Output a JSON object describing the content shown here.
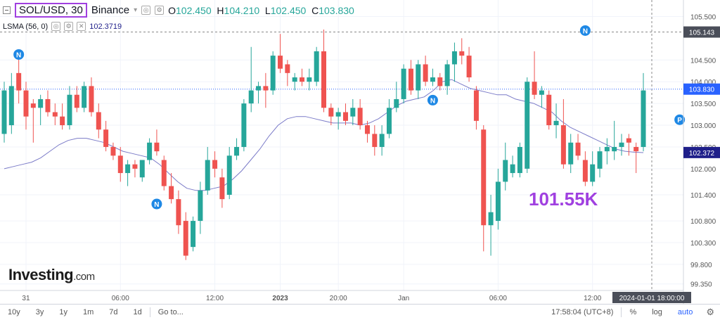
{
  "legend": {
    "symbol": "SOL/USD, 30",
    "exchange": "Binance",
    "open_label": "O",
    "open": "102.450",
    "high_label": "H",
    "high": "104.210",
    "low_label": "L",
    "low": "102.450",
    "close_label": "C",
    "close": "103.830"
  },
  "indicator": {
    "name": "LSMA (56, 0)",
    "value": "102.3719",
    "color": "#7b7bc8"
  },
  "annotation": "101.55K",
  "logo": {
    "main": "Investing",
    "suffix": ".com"
  },
  "bottom_bar": {
    "ranges": [
      "10y",
      "3y",
      "1y",
      "1m",
      "7d",
      "1d"
    ],
    "goto": "Go to...",
    "time": "17:58:04 (UTC+8)",
    "pct": "%",
    "log": "log",
    "auto": "auto"
  },
  "colors": {
    "up": "#26a69a",
    "down": "#ef5350",
    "price_line": "#2962ff",
    "annotation": "#a040e0"
  },
  "chart_data": {
    "type": "candlestick",
    "ylim": [
      99.2,
      105.75
    ],
    "y_ticks": [
      "105.500",
      "104.500",
      "104.000",
      "103.500",
      "103.000",
      "102.500",
      "102.000",
      "101.400",
      "100.800",
      "100.300",
      "99.800",
      "99.350"
    ],
    "x_ticks": [
      "31",
      "06:00",
      "12:00",
      "2023",
      "20:00",
      "Jan",
      "06:00",
      "12:00"
    ],
    "crosshair_time": "2024-01-01 18:00:00",
    "crosshair_price": "105.143",
    "last_price": "103.830",
    "lsma_last": "102.372",
    "candles": [
      {
        "o": 102.8,
        "h": 104.0,
        "l": 102.6,
        "c": 103.8
      },
      {
        "o": 103.0,
        "h": 104.2,
        "l": 102.8,
        "c": 103.9
      },
      {
        "o": 104.2,
        "h": 104.7,
        "l": 103.5,
        "c": 103.8
      },
      {
        "o": 103.8,
        "h": 104.0,
        "l": 102.9,
        "c": 103.2
      },
      {
        "o": 103.5,
        "h": 103.6,
        "l": 102.6,
        "c": 103.4
      },
      {
        "o": 103.4,
        "h": 103.7,
        "l": 103.0,
        "c": 103.6
      },
      {
        "o": 103.6,
        "h": 103.8,
        "l": 103.2,
        "c": 103.3
      },
      {
        "o": 103.3,
        "h": 103.5,
        "l": 103.0,
        "c": 103.2
      },
      {
        "o": 103.2,
        "h": 103.5,
        "l": 102.9,
        "c": 103.0
      },
      {
        "o": 103.0,
        "h": 103.9,
        "l": 102.9,
        "c": 103.7
      },
      {
        "o": 103.7,
        "h": 103.9,
        "l": 103.3,
        "c": 103.4
      },
      {
        "o": 103.4,
        "h": 104.0,
        "l": 103.3,
        "c": 103.9
      },
      {
        "o": 103.9,
        "h": 104.1,
        "l": 103.2,
        "c": 103.3
      },
      {
        "o": 103.3,
        "h": 103.5,
        "l": 102.7,
        "c": 102.9
      },
      {
        "o": 102.9,
        "h": 103.1,
        "l": 102.4,
        "c": 102.5
      },
      {
        "o": 102.5,
        "h": 102.6,
        "l": 102.2,
        "c": 102.3
      },
      {
        "o": 102.3,
        "h": 102.5,
        "l": 101.7,
        "c": 101.9
      },
      {
        "o": 101.9,
        "h": 102.2,
        "l": 101.6,
        "c": 102.1
      },
      {
        "o": 102.1,
        "h": 102.2,
        "l": 101.8,
        "c": 102.0
      },
      {
        "o": 101.8,
        "h": 102.2,
        "l": 101.7,
        "c": 102.2
      },
      {
        "o": 102.2,
        "h": 102.7,
        "l": 102.1,
        "c": 102.6
      },
      {
        "o": 102.6,
        "h": 102.9,
        "l": 102.3,
        "c": 102.4
      },
      {
        "o": 102.2,
        "h": 102.3,
        "l": 101.5,
        "c": 101.6
      },
      {
        "o": 101.6,
        "h": 101.9,
        "l": 101.2,
        "c": 101.3
      },
      {
        "o": 101.3,
        "h": 101.5,
        "l": 100.5,
        "c": 100.7
      },
      {
        "o": 100.8,
        "h": 101.0,
        "l": 99.9,
        "c": 100.0
      },
      {
        "o": 100.2,
        "h": 100.9,
        "l": 100.1,
        "c": 100.8
      },
      {
        "o": 100.8,
        "h": 101.7,
        "l": 100.5,
        "c": 101.5
      },
      {
        "o": 101.5,
        "h": 102.5,
        "l": 101.4,
        "c": 102.2
      },
      {
        "o": 102.2,
        "h": 102.4,
        "l": 101.8,
        "c": 102.0
      },
      {
        "o": 101.8,
        "h": 102.0,
        "l": 101.1,
        "c": 101.3
      },
      {
        "o": 101.4,
        "h": 102.5,
        "l": 101.3,
        "c": 102.3
      },
      {
        "o": 102.3,
        "h": 102.7,
        "l": 102.2,
        "c": 102.5
      },
      {
        "o": 102.5,
        "h": 103.6,
        "l": 102.4,
        "c": 103.5
      },
      {
        "o": 103.5,
        "h": 104.8,
        "l": 103.3,
        "c": 103.8
      },
      {
        "o": 103.8,
        "h": 104.0,
        "l": 103.5,
        "c": 103.9
      },
      {
        "o": 103.9,
        "h": 104.2,
        "l": 103.4,
        "c": 103.8
      },
      {
        "o": 103.8,
        "h": 104.7,
        "l": 103.7,
        "c": 104.6
      },
      {
        "o": 104.6,
        "h": 105.1,
        "l": 104.2,
        "c": 104.3
      },
      {
        "o": 104.4,
        "h": 104.5,
        "l": 103.9,
        "c": 104.2
      },
      {
        "o": 104.0,
        "h": 104.2,
        "l": 103.8,
        "c": 104.1
      },
      {
        "o": 104.1,
        "h": 104.3,
        "l": 103.9,
        "c": 104.0
      },
      {
        "o": 104.0,
        "h": 104.3,
        "l": 103.8,
        "c": 104.1
      },
      {
        "o": 104.0,
        "h": 104.8,
        "l": 103.9,
        "c": 104.7
      },
      {
        "o": 104.7,
        "h": 105.2,
        "l": 103.3,
        "c": 103.4
      },
      {
        "o": 103.4,
        "h": 103.5,
        "l": 103.0,
        "c": 103.2
      },
      {
        "o": 103.2,
        "h": 103.4,
        "l": 102.9,
        "c": 103.3
      },
      {
        "o": 103.3,
        "h": 103.5,
        "l": 103.0,
        "c": 103.1
      },
      {
        "o": 103.2,
        "h": 103.6,
        "l": 103.0,
        "c": 103.4
      },
      {
        "o": 103.4,
        "h": 103.6,
        "l": 102.9,
        "c": 103.0
      },
      {
        "o": 103.0,
        "h": 103.1,
        "l": 102.6,
        "c": 102.8
      },
      {
        "o": 102.8,
        "h": 103.0,
        "l": 102.3,
        "c": 102.5
      },
      {
        "o": 102.5,
        "h": 103.0,
        "l": 102.3,
        "c": 102.8
      },
      {
        "o": 102.8,
        "h": 103.6,
        "l": 102.7,
        "c": 103.4
      },
      {
        "o": 103.4,
        "h": 104.0,
        "l": 103.3,
        "c": 103.6
      },
      {
        "o": 103.6,
        "h": 104.4,
        "l": 103.5,
        "c": 104.3
      },
      {
        "o": 104.3,
        "h": 104.5,
        "l": 103.7,
        "c": 103.8
      },
      {
        "o": 103.8,
        "h": 104.5,
        "l": 103.6,
        "c": 104.4
      },
      {
        "o": 104.4,
        "h": 104.6,
        "l": 103.9,
        "c": 104.0
      },
      {
        "o": 104.0,
        "h": 104.3,
        "l": 103.9,
        "c": 104.1
      },
      {
        "o": 104.1,
        "h": 104.2,
        "l": 103.8,
        "c": 103.9
      },
      {
        "o": 103.9,
        "h": 104.5,
        "l": 103.7,
        "c": 104.4
      },
      {
        "o": 104.4,
        "h": 104.9,
        "l": 104.0,
        "c": 104.7
      },
      {
        "o": 104.7,
        "h": 105.0,
        "l": 104.4,
        "c": 104.6
      },
      {
        "o": 104.6,
        "h": 104.8,
        "l": 104.0,
        "c": 104.1
      },
      {
        "o": 103.8,
        "h": 103.9,
        "l": 102.9,
        "c": 103.1
      },
      {
        "o": 102.9,
        "h": 103.0,
        "l": 100.1,
        "c": 100.7
      },
      {
        "o": 100.7,
        "h": 101.4,
        "l": 100.0,
        "c": 101.0
      },
      {
        "o": 100.8,
        "h": 102.0,
        "l": 100.6,
        "c": 101.7
      },
      {
        "o": 101.7,
        "h": 102.6,
        "l": 101.5,
        "c": 102.2
      },
      {
        "o": 101.9,
        "h": 102.3,
        "l": 101.8,
        "c": 102.1
      },
      {
        "o": 101.9,
        "h": 102.6,
        "l": 101.8,
        "c": 102.5
      },
      {
        "o": 102.0,
        "h": 104.1,
        "l": 101.9,
        "c": 104.0
      },
      {
        "o": 104.0,
        "h": 104.7,
        "l": 103.6,
        "c": 103.7
      },
      {
        "o": 103.7,
        "h": 103.9,
        "l": 103.4,
        "c": 103.8
      },
      {
        "o": 103.7,
        "h": 103.8,
        "l": 102.9,
        "c": 103.0
      },
      {
        "o": 103.0,
        "h": 103.5,
        "l": 102.7,
        "c": 103.1
      },
      {
        "o": 103.0,
        "h": 103.6,
        "l": 102.0,
        "c": 102.1
      },
      {
        "o": 102.1,
        "h": 102.8,
        "l": 101.9,
        "c": 102.6
      },
      {
        "o": 102.6,
        "h": 102.8,
        "l": 102.2,
        "c": 102.3
      },
      {
        "o": 102.2,
        "h": 102.4,
        "l": 101.6,
        "c": 101.7
      },
      {
        "o": 101.7,
        "h": 102.4,
        "l": 101.6,
        "c": 102.1
      },
      {
        "o": 102.0,
        "h": 102.5,
        "l": 101.8,
        "c": 102.4
      },
      {
        "o": 102.4,
        "h": 102.7,
        "l": 102.1,
        "c": 102.5
      },
      {
        "o": 102.4,
        "h": 103.1,
        "l": 102.2,
        "c": 102.5
      },
      {
        "o": 102.5,
        "h": 102.8,
        "l": 102.3,
        "c": 102.6
      },
      {
        "o": 102.7,
        "h": 102.8,
        "l": 102.3,
        "c": 102.6
      },
      {
        "o": 102.5,
        "h": 102.6,
        "l": 101.9,
        "c": 102.4
      },
      {
        "o": 102.5,
        "h": 104.2,
        "l": 102.4,
        "c": 103.8
      }
    ],
    "lsma": [
      102.0,
      102.05,
      102.1,
      102.15,
      102.25,
      102.4,
      102.55,
      102.65,
      102.7,
      102.7,
      102.65,
      102.6,
      102.5,
      102.4,
      102.35,
      102.3,
      102.25,
      102.1,
      101.9,
      101.7,
      101.55,
      101.5,
      101.5,
      101.55,
      101.6,
      101.75,
      101.95,
      102.2,
      102.45,
      102.75,
      103.0,
      103.15,
      103.2,
      103.2,
      103.15,
      103.1,
      103.05,
      103.05,
      103.05,
      103.0,
      103.05,
      103.15,
      103.3,
      103.45,
      103.55,
      103.6,
      103.65,
      103.8,
      104.0,
      104.05,
      103.95,
      103.85,
      103.8,
      103.75,
      103.7,
      103.7,
      103.6,
      103.55,
      103.5,
      103.4,
      103.3,
      103.1,
      102.95,
      102.85,
      102.75,
      102.65,
      102.55,
      102.45,
      102.4,
      102.38,
      102.37
    ],
    "markers": [
      {
        "label": "N",
        "candle": 2,
        "price": 104.4,
        "color": "#1e88e5",
        "pos": "above"
      },
      {
        "label": "N",
        "candle": 21,
        "price": 101.35,
        "color": "#1e88e5",
        "pos": "below"
      },
      {
        "label": "N",
        "candle": 59,
        "price": 103.35,
        "color": "#1e88e5",
        "pos": "above"
      },
      {
        "label": "N",
        "candle": 80,
        "price": 104.95,
        "color": "#1e88e5",
        "pos": "above"
      },
      {
        "label": "P",
        "candle": 93,
        "price": 102.9,
        "color": "#1e88e5",
        "pos": "above"
      }
    ]
  }
}
